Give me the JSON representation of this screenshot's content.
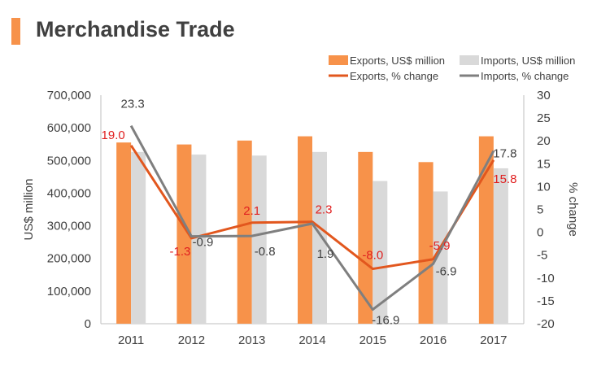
{
  "chart_data": {
    "type": "bar",
    "title": "Merchandise Trade",
    "categories": [
      "2011",
      "2012",
      "2013",
      "2014",
      "2015",
      "2016",
      "2017"
    ],
    "ylabel": "US$ million",
    "y2label": "% change",
    "ylim": [
      0,
      700000
    ],
    "y2lim": [
      -20,
      30
    ],
    "yticks": [
      "0",
      "100,000",
      "200,000",
      "300,000",
      "400,000",
      "500,000",
      "600,000",
      "700,000"
    ],
    "y2ticks": [
      "-20",
      "-15",
      "-10",
      "-5",
      "0",
      "5",
      "10",
      "15",
      "20",
      "25",
      "30"
    ],
    "grid": false,
    "legend_position": "top-right",
    "bar_series": [
      {
        "name": "Exports, US$ million",
        "color": "#f7924a",
        "values": [
          555000,
          549000,
          561000,
          574000,
          526000,
          495000,
          574000
        ]
      },
      {
        "name": "Imports, US$ million",
        "color": "#d9d9d9",
        "values": [
          526000,
          518000,
          515000,
          526000,
          437000,
          405000,
          476000
        ]
      }
    ],
    "line_series": [
      {
        "name": "Exports, % change",
        "color": "#e2571e",
        "values": [
          19.0,
          -1.3,
          2.1,
          2.3,
          -8.0,
          -5.9,
          15.8
        ],
        "labels": [
          "19.0",
          "-1.3",
          "2.1",
          "2.3",
          "-8.0",
          "-5.9",
          "15.8"
        ],
        "label_color": "#e02020"
      },
      {
        "name": "Imports, % change",
        "color": "#7f7f7f",
        "values": [
          23.3,
          -0.9,
          -0.8,
          1.9,
          -16.9,
          -6.9,
          17.8
        ],
        "labels": [
          "23.3",
          "-0.9",
          "-0.8",
          "1.9",
          "-16.9",
          "-6.9",
          "17.8"
        ],
        "label_color": "#404040"
      }
    ]
  }
}
